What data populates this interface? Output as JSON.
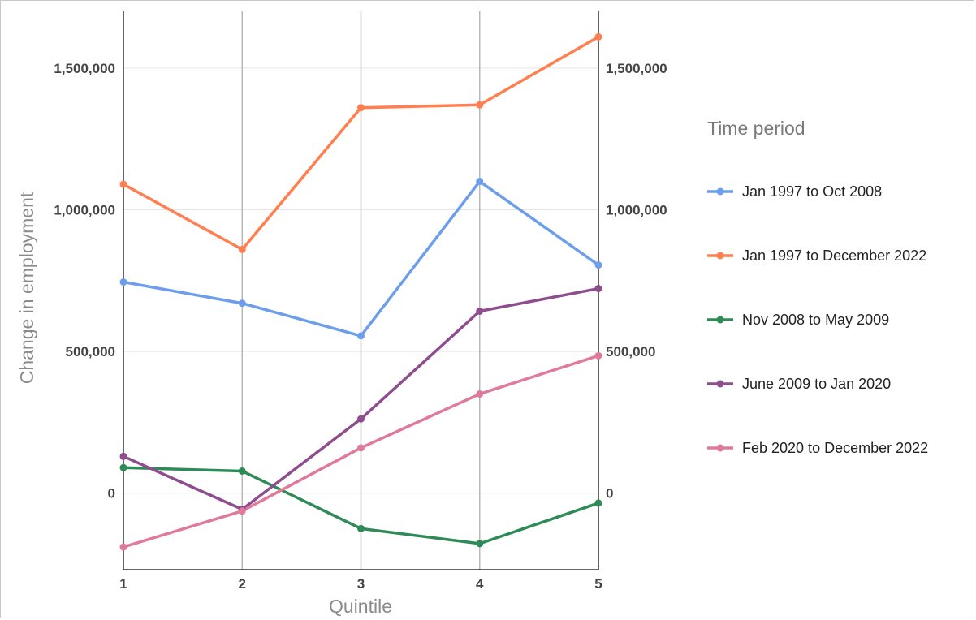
{
  "chart_data": {
    "type": "line",
    "xlabel": "Quintile",
    "ylabel": "Change in employment",
    "x": [
      1,
      2,
      3,
      4,
      5
    ],
    "x_tick_labels": [
      "1",
      "2",
      "3",
      "4",
      "5"
    ],
    "ylim": [
      -270000,
      1700000
    ],
    "y_ticks": [
      0,
      500000,
      1000000,
      1500000
    ],
    "y_tick_labels": [
      "0",
      "500,000",
      "1,000,000",
      "1,500,000"
    ],
    "grid": true,
    "legend_title": "Time period",
    "legend_position": "right",
    "series": [
      {
        "name": "Jan 1997 to Oct 2008",
        "color": "#6d9eeb",
        "values": [
          745000,
          670000,
          555000,
          1100000,
          805000
        ]
      },
      {
        "name": "Jan 1997 to December 2022",
        "color": "#ff7f50",
        "values": [
          1090000,
          860000,
          1360000,
          1370000,
          1610000
        ]
      },
      {
        "name": "Nov 2008 to May 2009",
        "color": "#2e8b57",
        "values": [
          90000,
          78000,
          -125000,
          -178000,
          -35000
        ]
      },
      {
        "name": "June 2009 to Jan 2020",
        "color": "#8e4d8e",
        "values": [
          130000,
          -57000,
          262000,
          642000,
          722000
        ]
      },
      {
        "name": "Feb 2020 to December 2022",
        "color": "#e07a9a",
        "values": [
          -190000,
          -63000,
          160000,
          350000,
          485000
        ]
      }
    ]
  }
}
